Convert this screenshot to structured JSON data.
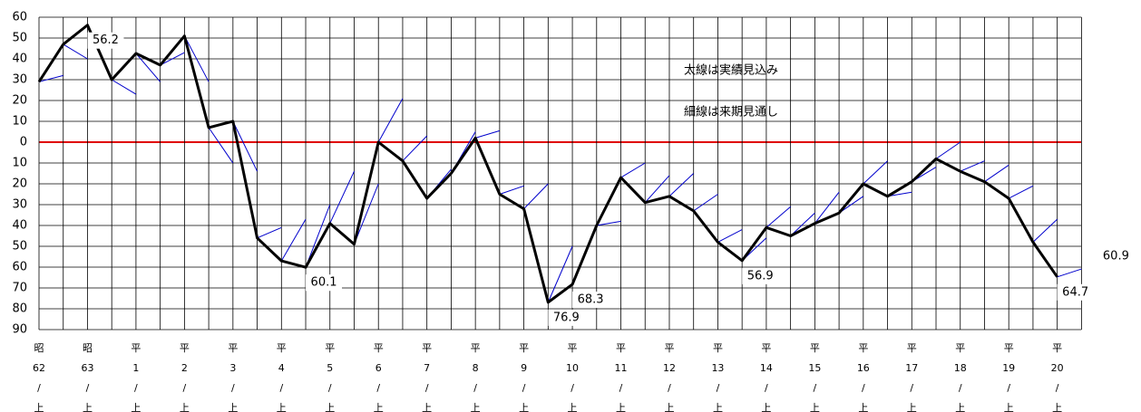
{
  "chart_data": {
    "type": "line",
    "categories": [
      "昭62/上",
      null,
      "昭63/上",
      null,
      "平1/上",
      null,
      "平2/上",
      null,
      "平3/上",
      null,
      "平4/上",
      null,
      "平5/上",
      null,
      "平6/上",
      null,
      "平7/上",
      null,
      "平8/上",
      null,
      "平9/上",
      null,
      "平10/上",
      null,
      "平11/上",
      null,
      "平12/上",
      null,
      "平13/上",
      null,
      "平14/上",
      null,
      "平15/上",
      null,
      "平16/上",
      null,
      "平17/上",
      null,
      "平18/上",
      null,
      "平19/上",
      null,
      "平20/上",
      null
    ],
    "series": [
      {
        "name": "太線は実績見込み",
        "color": "#000000",
        "values": [
          29,
          47,
          56.2,
          30,
          42.6,
          37,
          51,
          7,
          10,
          -46,
          -57,
          -60.1,
          -39,
          -49,
          0,
          -9,
          -27,
          -15,
          2,
          -25,
          -32,
          -76.9,
          -68.3,
          -40,
          -17,
          -29,
          -26,
          -33,
          -48,
          -56.9,
          -41,
          -45,
          -39,
          -34,
          -20,
          -26,
          -19,
          -8,
          -14,
          -19,
          -27,
          -48,
          -64.7,
          null
        ],
        "value_labels": [
          null,
          null,
          "56.2",
          null,
          null,
          null,
          null,
          null,
          null,
          null,
          null,
          "60.1",
          null,
          null,
          null,
          null,
          null,
          null,
          null,
          null,
          null,
          "76.9",
          "68.3",
          null,
          null,
          null,
          null,
          null,
          null,
          "56.9",
          null,
          null,
          null,
          null,
          null,
          null,
          null,
          null,
          null,
          null,
          null,
          null,
          "64.7",
          null
        ]
      },
      {
        "name": "細線は来期見通し",
        "color": "#0000cc",
        "values": [
          null,
          32,
          40,
          30,
          23,
          29,
          43,
          29,
          -10,
          -14,
          -41,
          -37,
          -30,
          -14,
          -20,
          21,
          3,
          -13,
          5,
          5.5,
          -21,
          -20,
          -50,
          -41,
          -38,
          -10,
          -16,
          -15,
          -25,
          -42,
          -46,
          -31,
          -34,
          -24,
          -26,
          -9,
          -24,
          -12,
          0,
          -9,
          -11,
          -21,
          -37,
          -60.9
        ],
        "value_labels": [
          null,
          null,
          null,
          null,
          null,
          null,
          null,
          null,
          null,
          null,
          null,
          null,
          null,
          null,
          null,
          null,
          null,
          null,
          null,
          null,
          null,
          null,
          null,
          null,
          null,
          null,
          null,
          null,
          null,
          null,
          null,
          null,
          null,
          null,
          null,
          null,
          null,
          null,
          null,
          null,
          null,
          null,
          null,
          "60.9"
        ]
      }
    ],
    "ylim": [
      -90,
      60
    ],
    "yticks": [
      60,
      50,
      40,
      30,
      20,
      10,
      0,
      {
        "value": -10,
        "label": "10"
      },
      {
        "value": -20,
        "label": "20"
      },
      {
        "value": -30,
        "label": "30"
      },
      {
        "value": -40,
        "label": "40"
      },
      {
        "value": -50,
        "label": "50"
      },
      {
        "value": -60,
        "label": "60"
      },
      {
        "value": -70,
        "label": "70"
      },
      {
        "value": -80,
        "label": "80"
      },
      {
        "value": -90,
        "label": "90"
      }
    ],
    "grid": true,
    "zero_line_color": "#e00000"
  }
}
